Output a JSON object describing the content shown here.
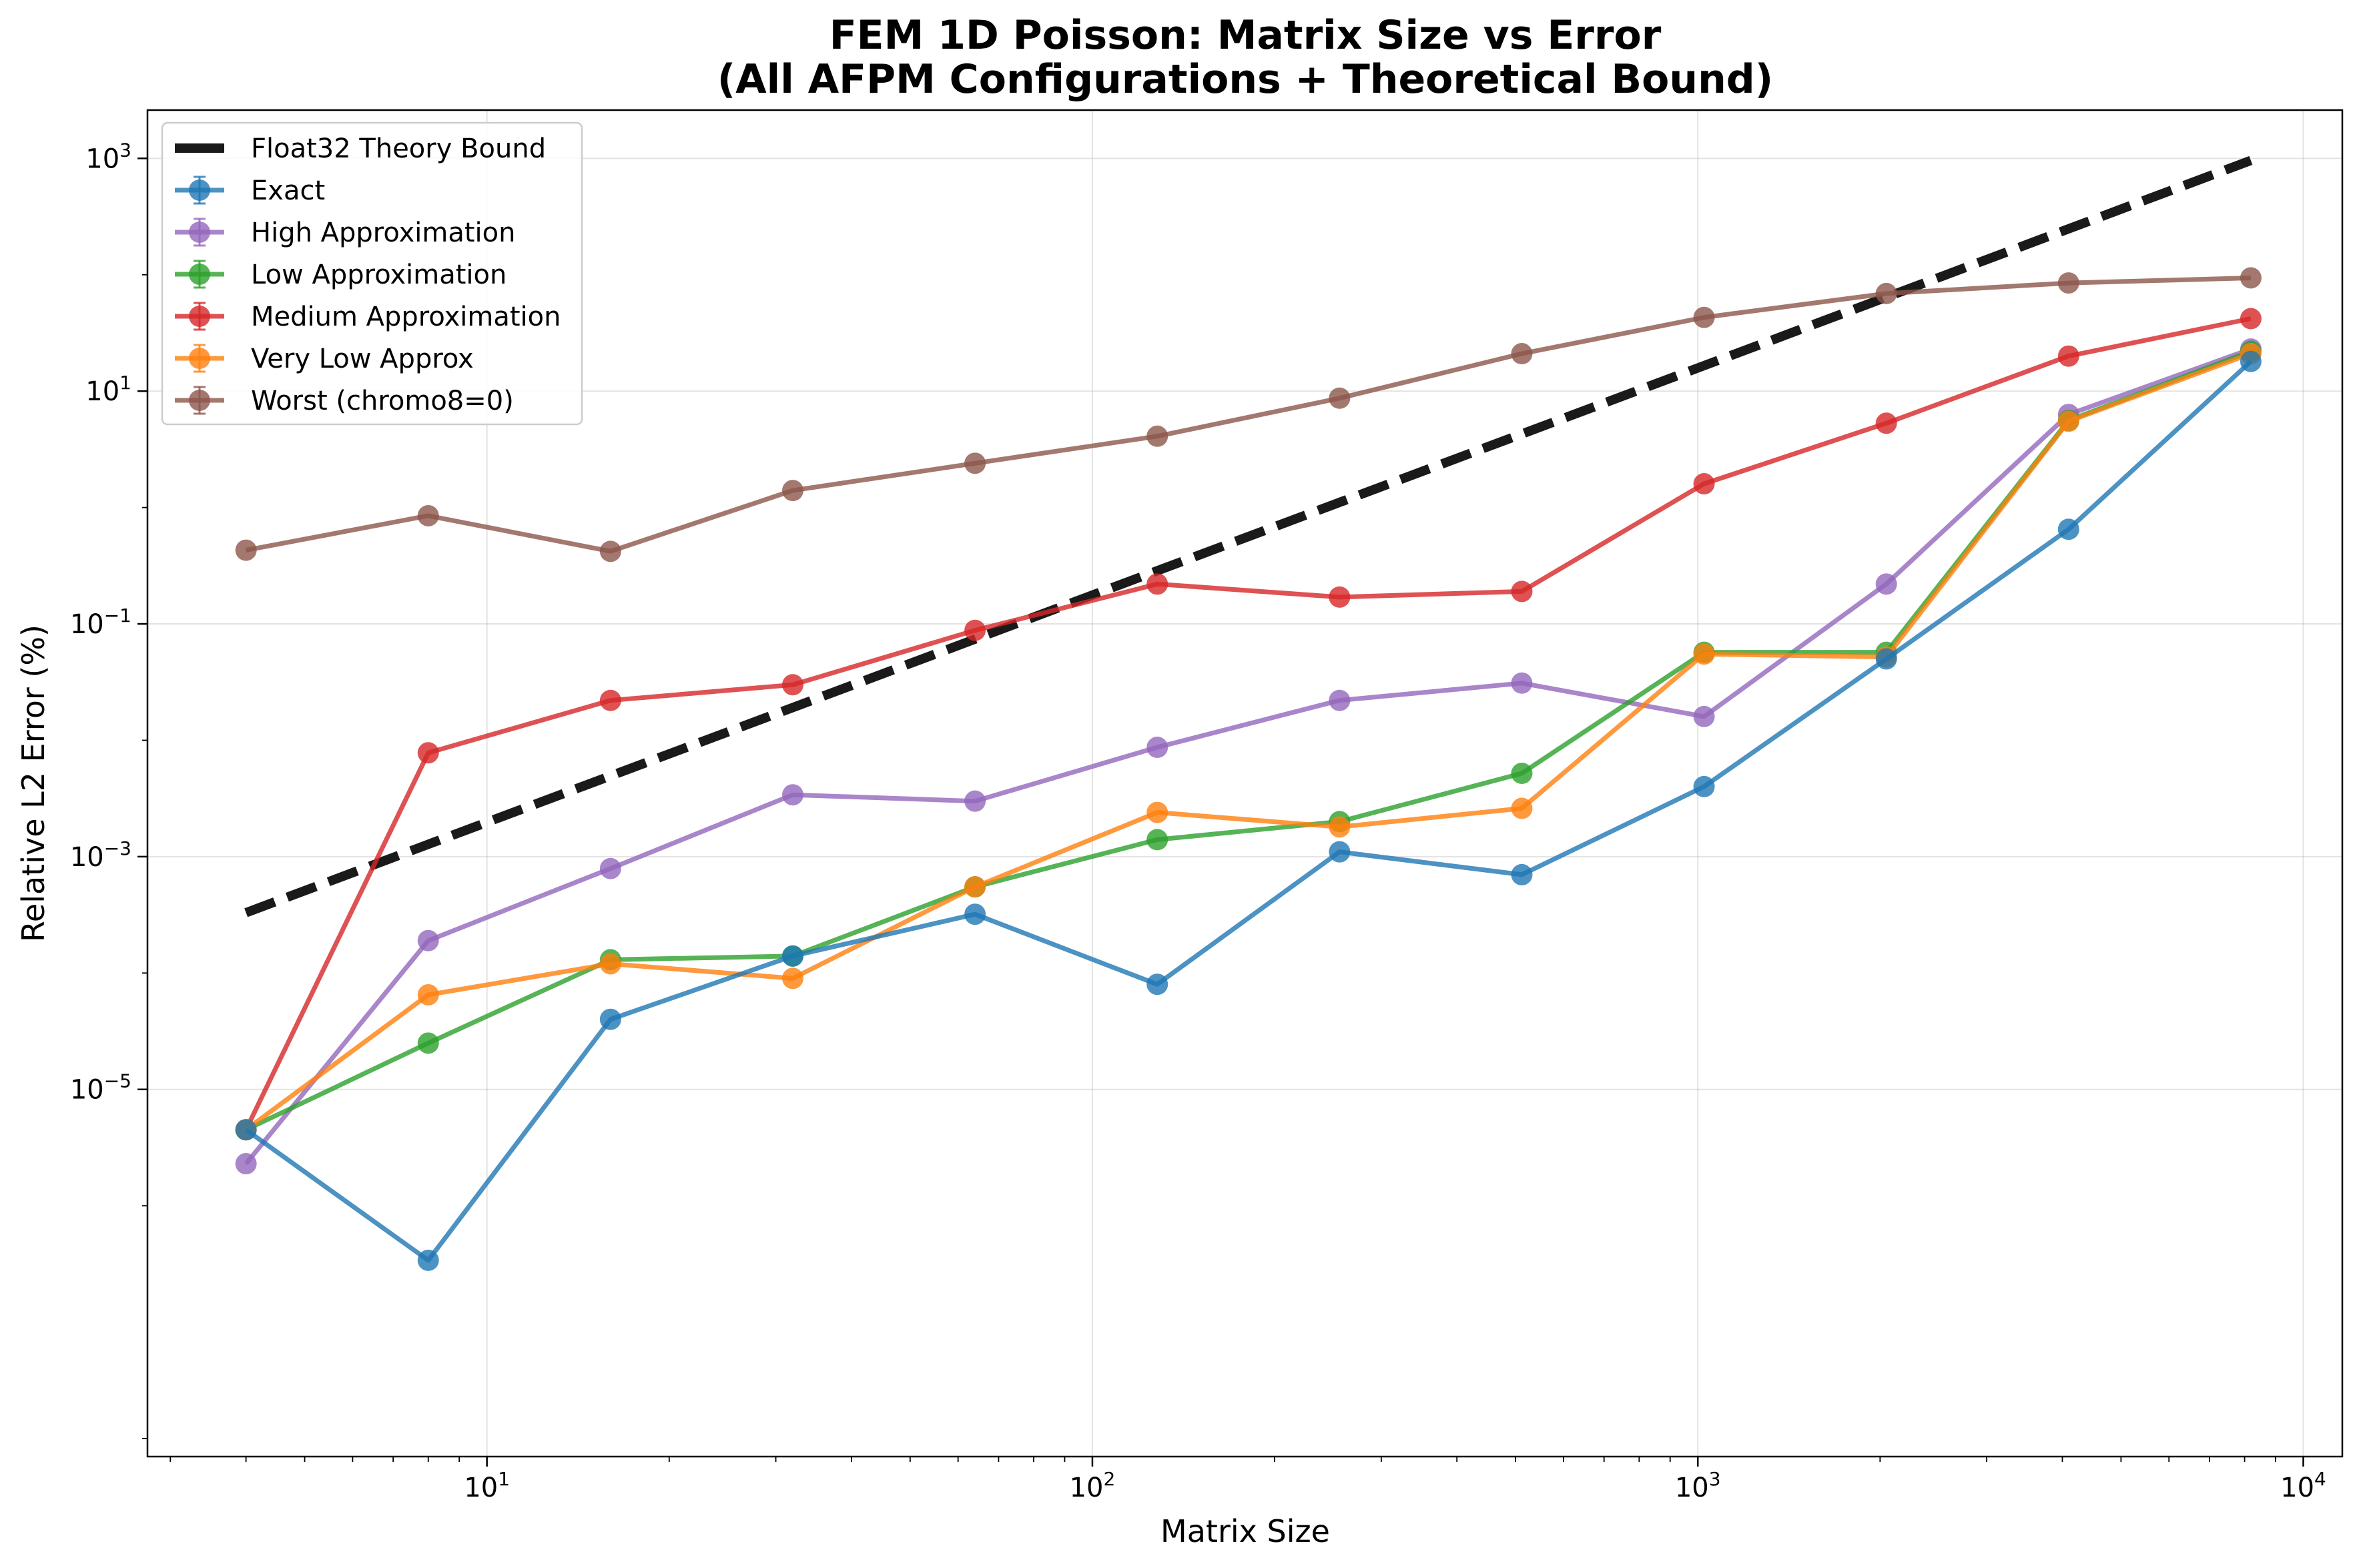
{
  "chart_data": {
    "type": "line",
    "title_lines": [
      "FEM 1D Poisson: Matrix Size vs Error",
      "(All AFPM Configurations + Theoretical Bound)"
    ],
    "xlabel": "Matrix Size",
    "ylabel": "Relative L2 Error (%)",
    "xscale": "log",
    "yscale": "log",
    "xlim": [
      2.75,
      11600
    ],
    "ylim": [
      7e-09,
      2600
    ],
    "xticks": [
      {
        "base": "10",
        "exp": "1",
        "value": 10
      },
      {
        "base": "10",
        "exp": "2",
        "value": 100
      },
      {
        "base": "10",
        "exp": "3",
        "value": 1000
      },
      {
        "base": "10",
        "exp": "4",
        "value": 10000
      }
    ],
    "yticks": [
      {
        "base": "10",
        "exp": "−5",
        "value": 1e-05
      },
      {
        "base": "10",
        "exp": "−3",
        "value": 0.001
      },
      {
        "base": "10",
        "exp": "−1",
        "value": 0.1
      },
      {
        "base": "10",
        "exp": "1",
        "value": 10
      },
      {
        "base": "10",
        "exp": "3",
        "value": 1000
      }
    ],
    "grid": true,
    "legend_position": "upper-left",
    "theory_bound": {
      "name": "Float32 Theory Bound",
      "color": "#1a1a1a",
      "x": [
        4,
        8192
      ],
      "y": [
        0.00033,
        960
      ]
    },
    "series": [
      {
        "name": "Exact",
        "color": "#1f77b4",
        "x": [
          4,
          8,
          16,
          32,
          64,
          128,
          256,
          512,
          1024,
          2048,
          4096,
          8192
        ],
        "y": [
          4.5e-06,
          3.4e-07,
          4e-05,
          0.00014,
          0.00032,
          8e-05,
          0.0011,
          0.0007,
          0.004,
          0.05,
          0.65,
          18
        ]
      },
      {
        "name": "High Approximation",
        "color": "#9467bd",
        "x": [
          4,
          8,
          16,
          32,
          64,
          128,
          256,
          512,
          1024,
          2048,
          4096,
          8192
        ],
        "y": [
          2.3e-06,
          0.00019,
          0.00079,
          0.0034,
          0.003,
          0.0087,
          0.022,
          0.031,
          0.016,
          0.22,
          6.3,
          23
        ]
      },
      {
        "name": "Low Approximation",
        "color": "#2ca02c",
        "x": [
          4,
          8,
          16,
          32,
          64,
          128,
          256,
          512,
          1024,
          2048,
          4096,
          8192
        ],
        "y": [
          4.5e-06,
          2.5e-05,
          0.00013,
          0.00014,
          0.00055,
          0.0014,
          0.002,
          0.0052,
          0.057,
          0.057,
          5.6,
          22
        ]
      },
      {
        "name": "Medium Approximation",
        "color": "#d62728",
        "x": [
          4,
          8,
          16,
          32,
          64,
          128,
          256,
          512,
          1024,
          2048,
          4096,
          8192
        ],
        "y": [
          4.5e-06,
          0.0078,
          0.022,
          0.03,
          0.088,
          0.22,
          0.17,
          0.19,
          1.6,
          5.3,
          20,
          42
        ]
      },
      {
        "name": "Very Low Approx",
        "color": "#ff7f0e",
        "x": [
          4,
          8,
          16,
          32,
          64,
          128,
          256,
          512,
          1024,
          2048,
          4096,
          8192
        ],
        "y": [
          4.5e-06,
          6.5e-05,
          0.00012,
          9e-05,
          0.00055,
          0.0024,
          0.0018,
          0.0026,
          0.055,
          0.052,
          5.5,
          21
        ]
      },
      {
        "name": "Worst (chromo8=0)",
        "color": "#8c564b",
        "x": [
          4,
          8,
          16,
          32,
          64,
          128,
          256,
          512,
          1024,
          2048,
          4096,
          8192
        ],
        "y": [
          0.43,
          0.85,
          0.42,
          1.4,
          2.4,
          4.1,
          8.7,
          21,
          43,
          69,
          85,
          94
        ]
      }
    ]
  }
}
